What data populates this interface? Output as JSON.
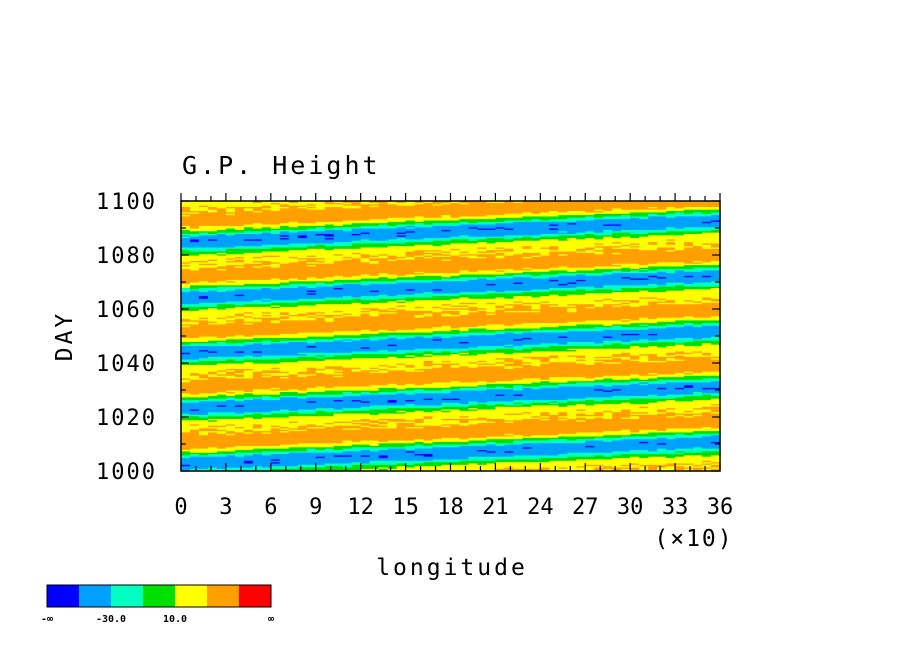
{
  "chart_data": {
    "type": "heatmap",
    "title": "G.P. Height",
    "xlabel": "longitude",
    "ylabel": "DAY",
    "x_multiplier_label": "(×10)",
    "xlim": [
      0,
      360
    ],
    "ylim": [
      1000,
      1100
    ],
    "x_ticks": [
      0,
      30,
      60,
      90,
      120,
      150,
      180,
      210,
      240,
      270,
      300,
      330,
      360
    ],
    "x_tick_labels": [
      "0",
      "3",
      "6",
      "9",
      "12",
      "15",
      "18",
      "21",
      "24",
      "27",
      "30",
      "33",
      "36"
    ],
    "y_ticks": [
      1000,
      1020,
      1040,
      1060,
      1080,
      1100
    ],
    "y_tick_labels": [
      "1000",
      "1020",
      "1040",
      "1060",
      "1080",
      "1100"
    ],
    "colorbar": {
      "colors": [
        "#0000ff",
        "#00a0ff",
        "#00ffc0",
        "#00e000",
        "#ffff00",
        "#ffa000",
        "#ff0000"
      ],
      "labels": [
        "-∞",
        "-30.0",
        "10.0",
        "∞"
      ]
    },
    "wave": {
      "period_days": 20.5,
      "day_offset_per_360_longitude": 8.2
    }
  }
}
